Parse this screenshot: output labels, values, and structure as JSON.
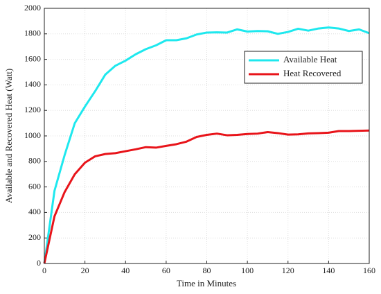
{
  "chart_data": {
    "type": "line",
    "xlabel": "Time in Minutes",
    "ylabel": "Available and Recovered Heat (Watt)",
    "x": [
      0,
      5,
      10,
      15,
      20,
      25,
      30,
      35,
      40,
      45,
      50,
      55,
      60,
      65,
      70,
      75,
      80,
      85,
      90,
      95,
      100,
      105,
      110,
      115,
      120,
      125,
      130,
      135,
      140,
      145,
      150,
      155,
      160
    ],
    "series": [
      {
        "name": "Available Heat",
        "color": "#1ee8ee",
        "values": [
          0,
          570,
          850,
          1100,
          1230,
          1350,
          1480,
          1550,
          1590,
          1640,
          1680,
          1710,
          1750,
          1750,
          1765,
          1795,
          1810,
          1812,
          1810,
          1835,
          1818,
          1822,
          1820,
          1800,
          1815,
          1840,
          1825,
          1842,
          1850,
          1842,
          1822,
          1835,
          1805
        ]
      },
      {
        "name": "Heat Recovered",
        "color": "#e8141a",
        "values": [
          0,
          370,
          560,
          700,
          790,
          840,
          858,
          865,
          880,
          895,
          912,
          908,
          922,
          935,
          955,
          992,
          1008,
          1018,
          1005,
          1008,
          1015,
          1018,
          1030,
          1022,
          1010,
          1012,
          1020,
          1022,
          1025,
          1038,
          1038,
          1040,
          1042
        ]
      }
    ],
    "xlim": [
      0,
      160
    ],
    "xticks": [
      0,
      20,
      40,
      60,
      80,
      100,
      120,
      140,
      160
    ],
    "ylim": [
      0,
      2000
    ],
    "yticks": [
      0,
      200,
      400,
      600,
      800,
      1000,
      1200,
      1400,
      1600,
      1800,
      2000
    ],
    "grid": true,
    "legend": "upper right"
  }
}
